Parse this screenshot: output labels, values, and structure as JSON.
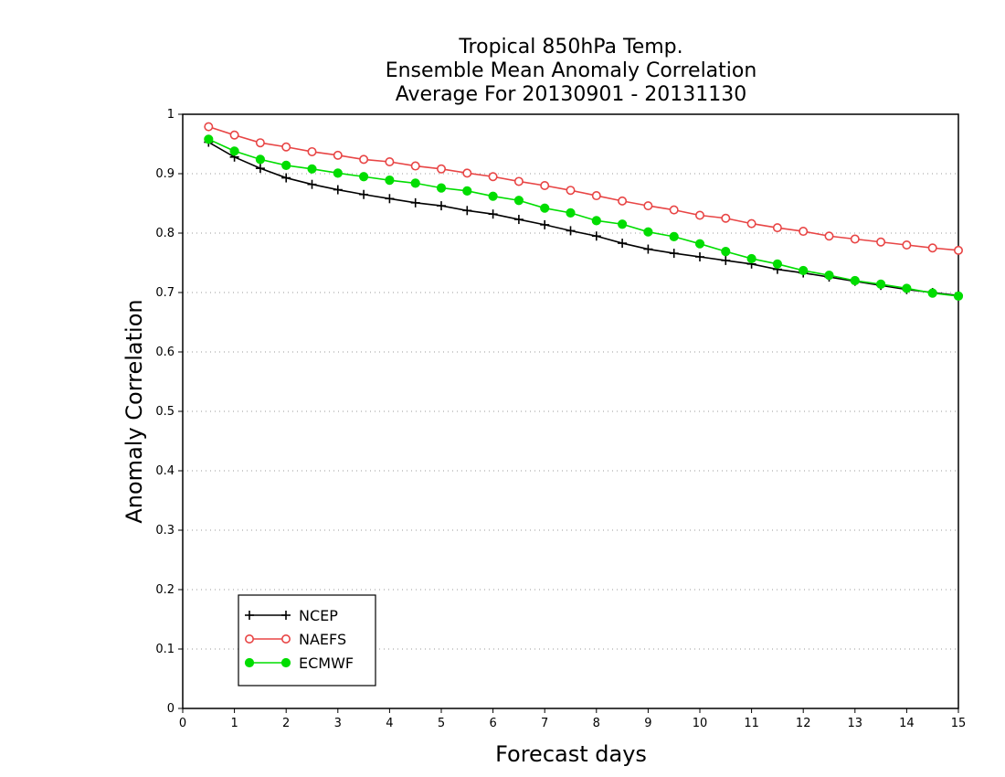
{
  "chart_data": {
    "type": "line",
    "title_lines": [
      "Tropical 850hPa Temp.",
      "Ensemble Mean Anomaly Correlation",
      "Average For 20130901 - 20131130"
    ],
    "xlabel": "Forecast days",
    "ylabel": "Anomaly Correlation",
    "xlim": [
      0,
      15
    ],
    "ylim": [
      0,
      1
    ],
    "xticks": [
      "0",
      "1",
      "2",
      "3",
      "4",
      "5",
      "6",
      "7",
      "8",
      "9",
      "10",
      "11",
      "12",
      "13",
      "14",
      "15"
    ],
    "yticks": [
      "0",
      "0.1",
      "0.2",
      "0.3",
      "0.4",
      "0.5",
      "0.6",
      "0.7",
      "0.8",
      "0.9",
      "1"
    ],
    "grid": "horizontal-dotted",
    "legend_position": "bottom-left",
    "x": [
      0.5,
      1,
      1.5,
      2,
      2.5,
      3,
      3.5,
      4,
      4.5,
      5,
      5.5,
      6,
      6.5,
      7,
      7.5,
      8,
      8.5,
      9,
      9.5,
      10,
      10.5,
      11,
      11.5,
      12,
      12.5,
      13,
      13.5,
      14,
      14.5,
      15
    ],
    "series": [
      {
        "name": "NCEP",
        "color": "#000000",
        "marker": "plus",
        "values": [
          0.953,
          0.928,
          0.909,
          0.893,
          0.882,
          0.873,
          0.865,
          0.858,
          0.851,
          0.846,
          0.838,
          0.832,
          0.823,
          0.814,
          0.804,
          0.795,
          0.783,
          0.773,
          0.766,
          0.76,
          0.754,
          0.748,
          0.739,
          0.733,
          0.726,
          0.719,
          0.712,
          0.705,
          0.7,
          0.695
        ]
      },
      {
        "name": "NAEFS",
        "color": "#e84545",
        "marker": "open-circle",
        "values": [
          0.979,
          0.965,
          0.952,
          0.945,
          0.937,
          0.931,
          0.924,
          0.92,
          0.913,
          0.908,
          0.901,
          0.895,
          0.887,
          0.88,
          0.872,
          0.863,
          0.854,
          0.846,
          0.839,
          0.83,
          0.825,
          0.816,
          0.809,
          0.803,
          0.795,
          0.79,
          0.785,
          0.78,
          0.775,
          0.771
        ]
      },
      {
        "name": "ECMWF",
        "color": "#00dd00",
        "marker": "filled-circle",
        "values": [
          0.958,
          0.938,
          0.924,
          0.914,
          0.908,
          0.901,
          0.895,
          0.889,
          0.884,
          0.876,
          0.871,
          0.862,
          0.855,
          0.842,
          0.834,
          0.821,
          0.815,
          0.802,
          0.794,
          0.782,
          0.769,
          0.757,
          0.748,
          0.737,
          0.729,
          0.72,
          0.714,
          0.707,
          0.699,
          0.694
        ]
      }
    ]
  }
}
